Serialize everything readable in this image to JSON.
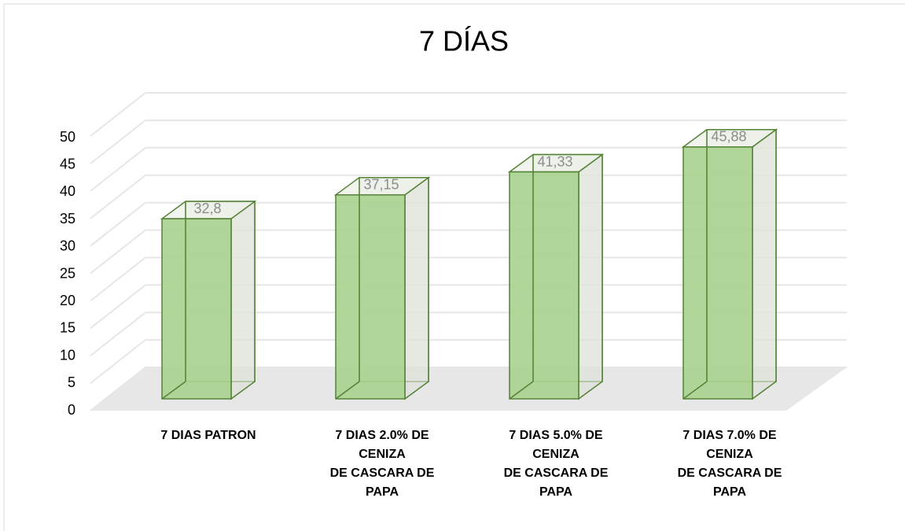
{
  "chart_data": {
    "type": "bar3d",
    "title": "7 DÍAS",
    "categories": [
      "7 DIAS PATRON",
      "7 DIAS 2.0% DE CENIZA\nDE CASCARA DE PAPA",
      "7 DIAS 5.0% DE CENIZA\nDE CASCARA DE PAPA",
      "7 DIAS 7.0% DE CENIZA\nDE CASCARA DE PAPA"
    ],
    "values": [
      32.8,
      37.15,
      41.33,
      45.88
    ],
    "value_labels": [
      "32,8",
      "37,15",
      "41,33",
      "45,88"
    ],
    "color": "#a9d18e",
    "edge_color": "#548235",
    "ylim": [
      0,
      50
    ],
    "yticks": [
      0,
      5,
      10,
      15,
      20,
      25,
      30,
      35,
      40,
      45,
      50
    ],
    "grid": true
  }
}
